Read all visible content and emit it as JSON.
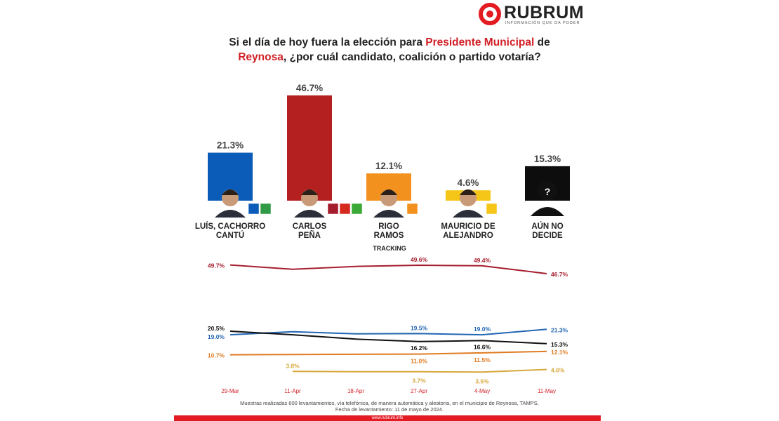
{
  "brand": {
    "name": "RUBRUM",
    "tagline": "INFORMACIÓN QUE DA PODER",
    "accent": "#e31b23",
    "url": "www.rubrum.info"
  },
  "title": {
    "part1": "Si el día de hoy fuera la elección para ",
    "highlight1": "Presidente Municipal",
    "part2": " de ",
    "highlight2": "Reynosa",
    "part3": ", ¿por cuál candidato, coalición o partido votaría?"
  },
  "chart_data": [
    {
      "type": "bar",
      "categories": [
        "LUÍS, CACHORRO CANTÚ",
        "CARLOS PEÑA",
        "RIGO RAMOS",
        "MAURICIO DE ALEJANDRO",
        "AÚN NO DECIDE"
      ],
      "category_lines": [
        [
          "LUÍS, CACHORRO",
          "CANTÚ"
        ],
        [
          "CARLOS",
          "PEÑA"
        ],
        [
          "RIGO",
          "RAMOS"
        ],
        [
          "MAURICIO DE",
          "ALEJANDRO"
        ],
        [
          "AÚN NO",
          "DECIDE"
        ]
      ],
      "values": [
        21.3,
        46.7,
        12.1,
        4.6,
        15.3
      ],
      "value_labels": [
        "21.3%",
        "46.7%",
        "12.1%",
        "4.6%",
        "15.3%"
      ],
      "colors": [
        "#0b5cb8",
        "#b3201f",
        "#f2911e",
        "#f5c518",
        "#0d0d0d"
      ],
      "party_badges": [
        [
          "PAN",
          "PRI"
        ],
        [
          "MORENA",
          "PT",
          "VERDE"
        ],
        [
          "MC"
        ],
        [
          "PRD"
        ],
        []
      ],
      "badge_colors": {
        "PAN": "#0b5cb8",
        "PRI": "#2f9b44",
        "MORENA": "#a51d2d",
        "PT": "#d52b1e",
        "VERDE": "#3aa935",
        "MC": "#f2911e",
        "PRD": "#f5c518"
      }
    },
    {
      "type": "line",
      "title": "TRACKING",
      "x": [
        "29-Mar",
        "11-Apr",
        "18-Apr",
        "27-Apr",
        "4-May",
        "11-May"
      ],
      "series": [
        {
          "name": "CARLOS PEÑA",
          "color": "#a51d2d",
          "values": [
            49.7,
            48.2,
            49.2,
            49.6,
            49.4,
            46.7
          ],
          "labels": [
            "49.7%",
            "",
            "",
            "49.6%",
            "49.4%",
            "46.7%"
          ]
        },
        {
          "name": "LUÍS, CACHORRO CANTÚ",
          "color": "#2366b3",
          "values": [
            19.0,
            20.3,
            19.4,
            19.5,
            19.0,
            21.3
          ],
          "labels": [
            "19.0%",
            "",
            "",
            "19.5%",
            "19.0%",
            "21.3%"
          ]
        },
        {
          "name": "AÚN NO DECIDE",
          "color": "#111111",
          "values": [
            20.5,
            19.0,
            17.2,
            16.2,
            16.6,
            15.3
          ],
          "labels": [
            "20.5%",
            "",
            "",
            "16.2%",
            "16.6%",
            "15.3%"
          ]
        },
        {
          "name": "RIGO RAMOS",
          "color": "#e07b22",
          "values": [
            10.7,
            10.8,
            10.9,
            11.0,
            11.5,
            12.1
          ],
          "labels": [
            "10.7%",
            "",
            "",
            "11.0%",
            "11.5%",
            "12.1%"
          ]
        },
        {
          "name": "MAURICIO DE ALEJANDRO",
          "color": "#d7a83a",
          "values": [
            null,
            3.8,
            3.7,
            3.7,
            3.5,
            4.6
          ],
          "labels": [
            "",
            "3.8%",
            "",
            "3.7%",
            "3.5%",
            "4.6%"
          ]
        }
      ]
    }
  ],
  "footer": {
    "line1": "Muestras realizadas 600 levantamientos, vía telefónica, de manera automática y aleatoria, en el municipio de Reynosa, TAMPS.",
    "line2": "Fecha de levantamiento: 11 de mayo de 2024."
  }
}
